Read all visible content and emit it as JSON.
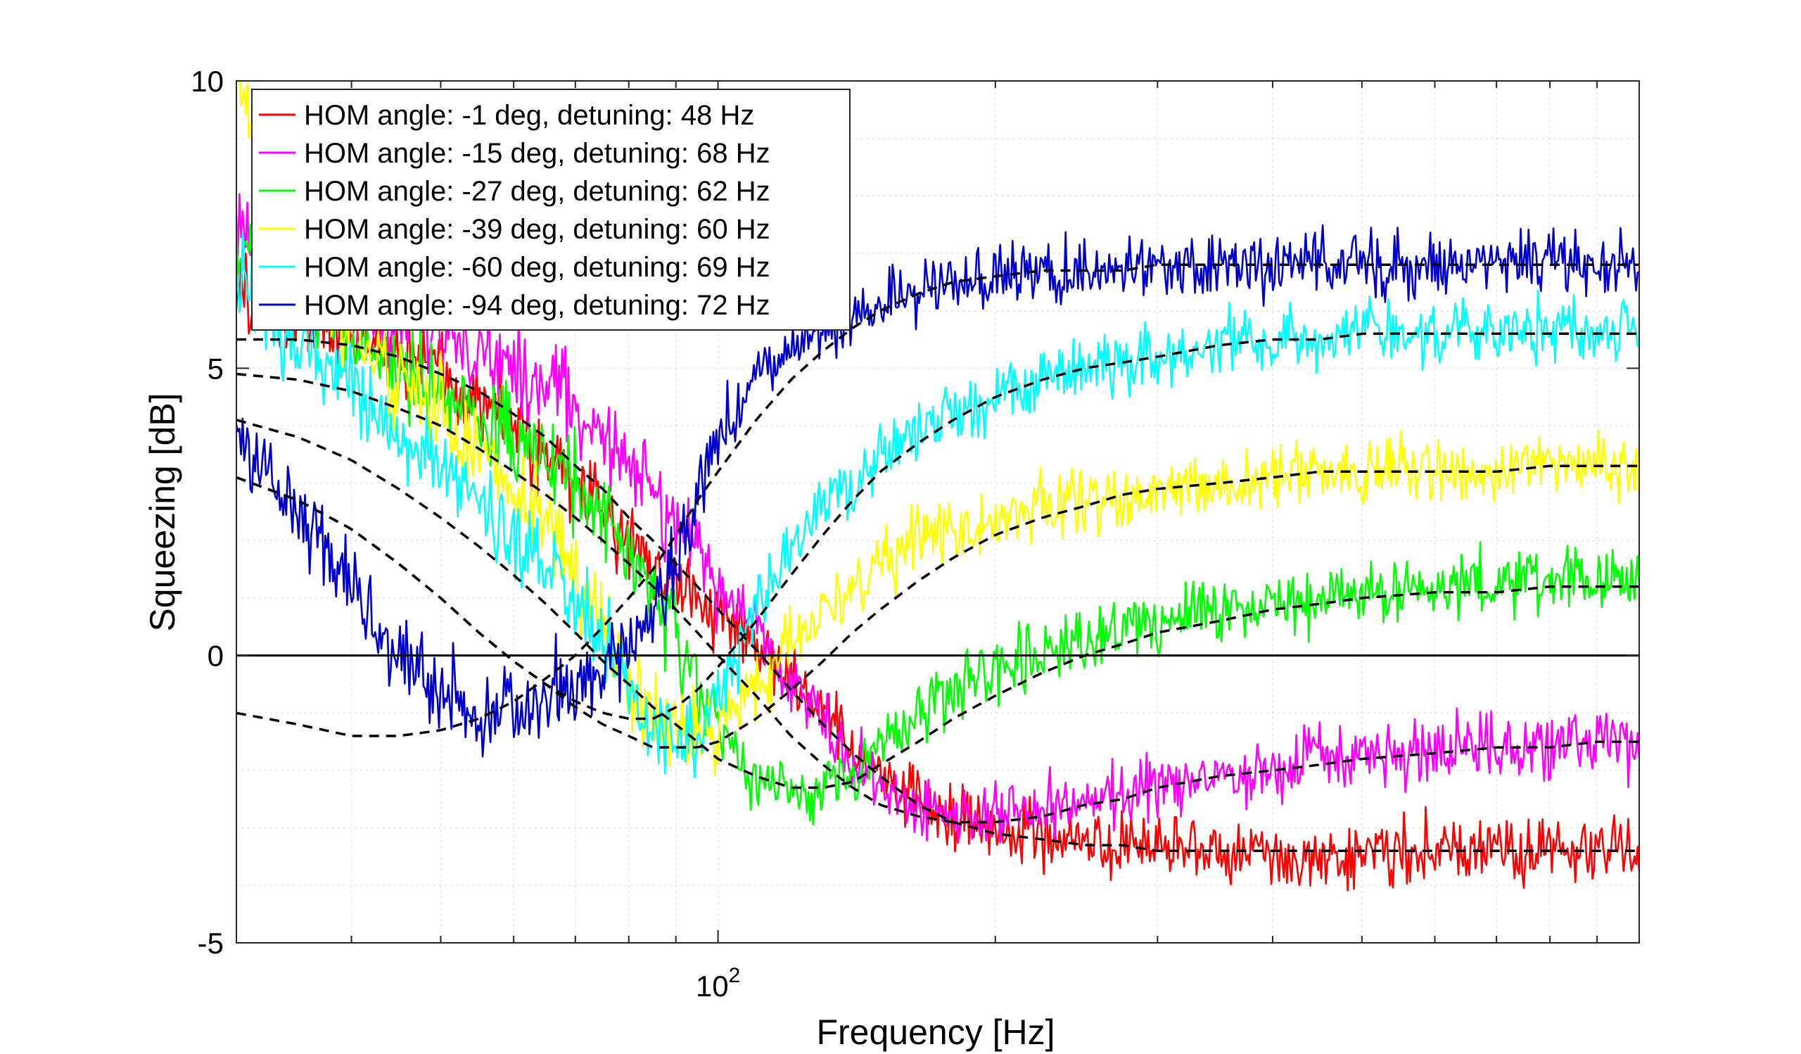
{
  "chart_data": {
    "type": "line",
    "title": "",
    "xlabel": "Frequency [Hz]",
    "ylabel": "Squeezing [dB]",
    "xscale": "log",
    "xlim": [
      30,
      1000
    ],
    "ylim": [
      -5,
      10
    ],
    "grid": true,
    "legend_position": "top-left",
    "x_ticks": [
      {
        "value": 100,
        "label_base": "10",
        "label_exp": "2"
      }
    ],
    "y_ticks": [
      {
        "value": -5,
        "label": "-5"
      },
      {
        "value": 0,
        "label": "0"
      },
      {
        "value": 5,
        "label": "5"
      },
      {
        "value": 10,
        "label": "10"
      }
    ],
    "reference_line": {
      "y": 0,
      "color": "#000000"
    },
    "x": [
      30,
      35,
      40,
      45,
      50,
      55,
      60,
      65,
      70,
      75,
      80,
      85,
      90,
      95,
      100,
      110,
      120,
      130,
      140,
      150,
      165,
      180,
      200,
      225,
      250,
      275,
      300,
      350,
      400,
      450,
      500,
      600,
      700,
      800,
      900,
      1000
    ],
    "series": [
      {
        "name": "HOM angle: -1 deg, detuning: 48 Hz",
        "color": "#ff0000",
        "values": [
          6.4,
          5.8,
          5.6,
          5.4,
          5.0,
          4.5,
          4.0,
          3.4,
          3.0,
          2.5,
          2.1,
          1.6,
          1.3,
          1.0,
          0.7,
          0.2,
          -0.4,
          -1.1,
          -1.6,
          -2.1,
          -2.5,
          -2.8,
          -3.0,
          -3.1,
          -3.3,
          -3.4,
          -3.4,
          -3.4,
          -3.5,
          -3.5,
          -3.4,
          -3.4,
          -3.4,
          -3.4,
          -3.4,
          -3.4
        ]
      },
      {
        "name": "HOM angle: -15 deg, detuning: 68 Hz",
        "color": "#ff00ff",
        "values": [
          7.6,
          6.6,
          6.0,
          5.8,
          5.6,
          5.4,
          5.0,
          4.7,
          4.3,
          3.9,
          3.4,
          2.8,
          2.3,
          1.8,
          1.2,
          0.5,
          -0.4,
          -1.2,
          -1.8,
          -2.3,
          -2.6,
          -2.8,
          -2.8,
          -2.7,
          -2.6,
          -2.4,
          -2.3,
          -2.1,
          -2.0,
          -1.8,
          -1.8,
          -1.7,
          -1.6,
          -1.6,
          -1.6,
          -1.6
        ]
      },
      {
        "name": "HOM angle: -27 deg, detuning: 62 Hz",
        "color": "#00ff00",
        "values": [
          7.2,
          6.4,
          5.6,
          5.0,
          4.5,
          4.2,
          3.8,
          3.4,
          3.0,
          2.4,
          1.8,
          1.0,
          0.2,
          -0.6,
          -1.3,
          -2.2,
          -2.4,
          -2.3,
          -2.0,
          -1.6,
          -1.0,
          -0.5,
          -0.2,
          0.1,
          0.3,
          0.5,
          0.6,
          0.8,
          0.9,
          1.0,
          1.1,
          1.2,
          1.2,
          1.3,
          1.3,
          1.3
        ]
      },
      {
        "name": "HOM angle: -39 deg, detuning: 60 Hz",
        "color": "#ffff00",
        "values": [
          10.0,
          7.2,
          5.6,
          4.8,
          4.3,
          3.5,
          2.8,
          2.2,
          1.5,
          0.4,
          -0.4,
          -1.1,
          -1.2,
          -1.4,
          -1.2,
          -0.6,
          0.3,
          0.8,
          1.1,
          1.5,
          2.0,
          2.2,
          2.4,
          2.6,
          2.7,
          2.8,
          2.9,
          3.0,
          3.1,
          3.2,
          3.2,
          3.2,
          3.2,
          3.3,
          3.3,
          3.3
        ]
      },
      {
        "name": "HOM angle: -60 deg, detuning: 69 Hz",
        "color": "#00ffff",
        "values": [
          6.5,
          5.3,
          4.8,
          3.8,
          3.2,
          2.7,
          2.0,
          1.4,
          0.9,
          0.2,
          -0.6,
          -1.1,
          -1.5,
          -1.4,
          -0.8,
          0.8,
          1.8,
          2.6,
          3.0,
          3.4,
          3.8,
          4.2,
          4.5,
          4.8,
          5.0,
          5.1,
          5.2,
          5.4,
          5.5,
          5.6,
          5.6,
          5.6,
          5.6,
          5.7,
          5.7,
          5.7
        ]
      },
      {
        "name": "HOM angle: -94 deg, detuning: 72 Hz",
        "color": "#0000cc",
        "values": [
          3.8,
          2.4,
          1.2,
          0.0,
          -0.6,
          -1.2,
          -1.0,
          -0.7,
          -0.6,
          -0.3,
          0.2,
          0.8,
          1.6,
          2.6,
          3.8,
          4.8,
          5.3,
          5.6,
          5.9,
          6.1,
          6.3,
          6.5,
          6.6,
          6.7,
          6.7,
          6.7,
          6.8,
          6.8,
          6.8,
          6.8,
          6.8,
          6.8,
          6.8,
          6.8,
          6.8,
          6.8
        ]
      }
    ],
    "fit_curves": [
      {
        "for": "HOM angle: -1 deg, detuning: 48 Hz",
        "style": "dashed",
        "color": "#000000",
        "values": [
          5.5,
          5.5,
          5.4,
          5.2,
          4.9,
          4.6,
          4.2,
          3.8,
          3.3,
          2.9,
          2.4,
          2.0,
          1.6,
          1.2,
          0.8,
          0.1,
          -0.6,
          -1.2,
          -1.7,
          -2.1,
          -2.6,
          -2.9,
          -3.1,
          -3.2,
          -3.3,
          -3.3,
          -3.4,
          -3.4,
          -3.4,
          -3.4,
          -3.4,
          -3.4,
          -3.4,
          -3.4,
          -3.4,
          -3.4
        ]
      },
      {
        "for": "HOM angle: -15 deg, detuning: 68 Hz",
        "style": "dashed",
        "color": "#000000",
        "values": [
          4.9,
          4.8,
          4.6,
          4.3,
          4.0,
          3.6,
          3.2,
          2.8,
          2.4,
          2.0,
          1.6,
          1.2,
          0.8,
          0.4,
          0.0,
          -0.7,
          -1.4,
          -1.9,
          -2.3,
          -2.6,
          -2.8,
          -2.9,
          -2.9,
          -2.8,
          -2.6,
          -2.5,
          -2.3,
          -2.1,
          -2.0,
          -1.9,
          -1.8,
          -1.7,
          -1.6,
          -1.6,
          -1.5,
          -1.5
        ]
      },
      {
        "for": "HOM angle: -27 deg, detuning: 62 Hz",
        "style": "dashed",
        "color": "#000000",
        "values": [
          4.1,
          3.8,
          3.4,
          2.9,
          2.4,
          1.9,
          1.4,
          0.9,
          0.4,
          -0.1,
          -0.5,
          -0.9,
          -1.2,
          -1.5,
          -1.8,
          -2.1,
          -2.3,
          -2.3,
          -2.2,
          -1.9,
          -1.5,
          -1.1,
          -0.7,
          -0.3,
          0.0,
          0.2,
          0.4,
          0.6,
          0.8,
          0.9,
          1.0,
          1.1,
          1.1,
          1.2,
          1.2,
          1.2
        ]
      },
      {
        "for": "HOM angle: -39 deg, detuning: 60 Hz",
        "style": "dashed",
        "color": "#000000",
        "values": [
          3.1,
          2.7,
          2.2,
          1.6,
          1.0,
          0.4,
          -0.1,
          -0.5,
          -0.9,
          -1.2,
          -1.4,
          -1.6,
          -1.6,
          -1.6,
          -1.5,
          -1.1,
          -0.6,
          -0.1,
          0.4,
          0.8,
          1.3,
          1.7,
          2.1,
          2.4,
          2.6,
          2.8,
          2.9,
          3.0,
          3.1,
          3.2,
          3.2,
          3.2,
          3.2,
          3.3,
          3.3,
          3.3
        ]
      },
      {
        "for": "HOM angle: -60 deg, detuning: 69 Hz",
        "style": "dashed",
        "color": "#000000",
        "values": [
          3.1,
          2.7,
          2.2,
          1.6,
          1.0,
          0.4,
          -0.1,
          -0.5,
          -0.8,
          -1.0,
          -1.1,
          -1.1,
          -0.9,
          -0.6,
          -0.2,
          0.6,
          1.4,
          2.1,
          2.7,
          3.2,
          3.7,
          4.1,
          4.5,
          4.8,
          5.0,
          5.1,
          5.2,
          5.4,
          5.5,
          5.5,
          5.6,
          5.6,
          5.6,
          5.6,
          5.6,
          5.6
        ]
      },
      {
        "for": "HOM angle: -94 deg, detuning: 72 Hz",
        "style": "dashed",
        "color": "#000000",
        "values": [
          -1.0,
          -1.2,
          -1.4,
          -1.4,
          -1.3,
          -1.1,
          -0.8,
          -0.4,
          0.0,
          0.5,
          1.0,
          1.5,
          2.1,
          2.7,
          3.2,
          4.1,
          4.8,
          5.3,
          5.7,
          6.0,
          6.3,
          6.5,
          6.6,
          6.7,
          6.7,
          6.7,
          6.8,
          6.8,
          6.8,
          6.8,
          6.8,
          6.8,
          6.8,
          6.8,
          6.8,
          6.8
        ]
      }
    ]
  }
}
